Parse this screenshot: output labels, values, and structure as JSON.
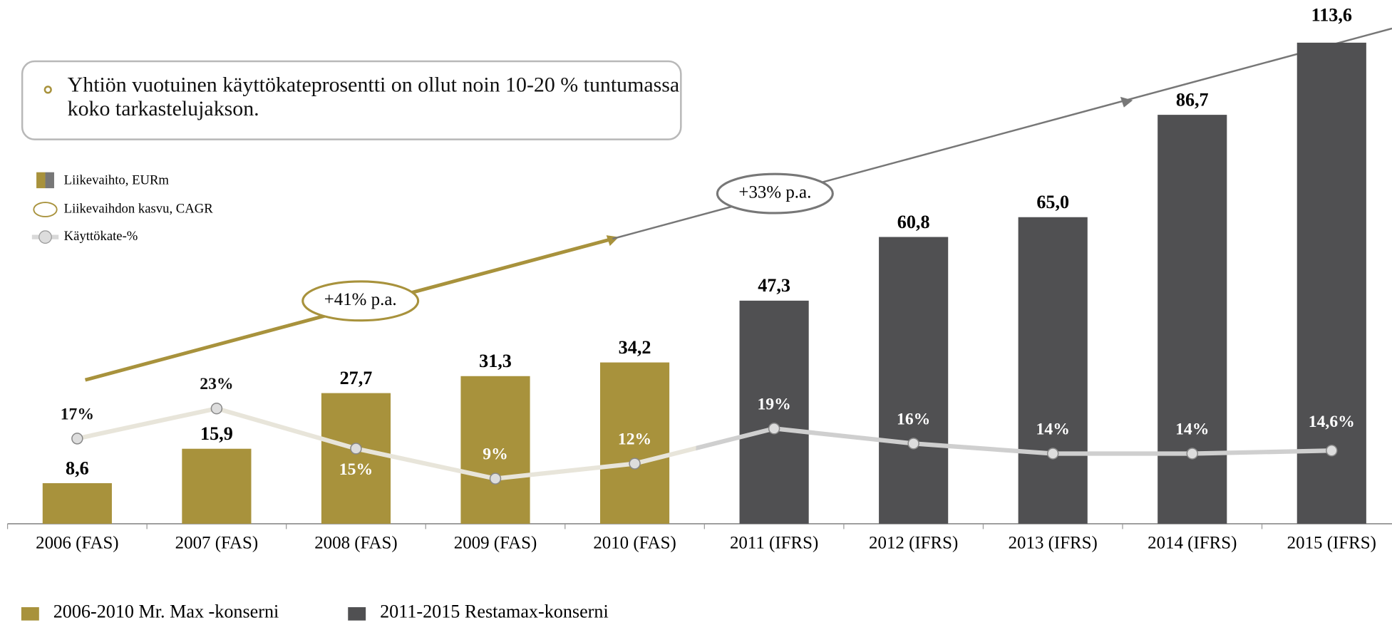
{
  "chart_data": {
    "type": "bar",
    "categories": [
      "2006 (FAS)",
      "2007 (FAS)",
      "2008 (FAS)",
      "2009 (FAS)",
      "2010 (FAS)",
      "2011 (IFRS)",
      "2012 (IFRS)",
      "2013 (IFRS)",
      "2014 (IFRS)",
      "2015 (IFRS)"
    ],
    "series": [
      {
        "name": "2006-2010 Mr. Max -konserni",
        "color": "#a8923c",
        "values": [
          8.6,
          15.9,
          27.7,
          31.3,
          34.2,
          null,
          null,
          null,
          null,
          null
        ],
        "value_labels": [
          "8,6",
          "15,9",
          "27,7",
          "31,3",
          "34,2",
          null,
          null,
          null,
          null,
          null
        ]
      },
      {
        "name": "2011-2015 Restamax-konserni",
        "color": "#505052",
        "values": [
          null,
          null,
          null,
          null,
          null,
          47.3,
          60.8,
          65.0,
          86.7,
          113.6
        ],
        "value_labels": [
          null,
          null,
          null,
          null,
          null,
          "47,3",
          "60,8",
          "65,0",
          "86,7",
          "113,6"
        ]
      },
      {
        "name": "Käyttökate-%",
        "type": "line",
        "axis": "y2",
        "color": "#cfcfcf",
        "values": [
          17,
          23,
          15,
          9,
          12,
          19,
          16,
          14,
          14,
          14.6
        ],
        "value_labels": [
          "17%",
          "23%",
          "15%",
          "9%",
          "12%",
          "19%",
          "16%",
          "14%",
          "14%",
          "14,6%"
        ]
      }
    ],
    "legend_top": [
      "Liikevaihto, EURm",
      "Liikevaihdon kasvu, CAGR"
    ],
    "callout": "Yhtiön vuotuinen käyttökateprosentti on ollut noin 10-20 % tuntumassa koko tarkastelujakson.",
    "annotations": [
      "+41% p.a.",
      "+33% p.a."
    ],
    "ylim": [
      0,
      102
    ],
    "y2lim": [
      0,
      96
    ]
  }
}
